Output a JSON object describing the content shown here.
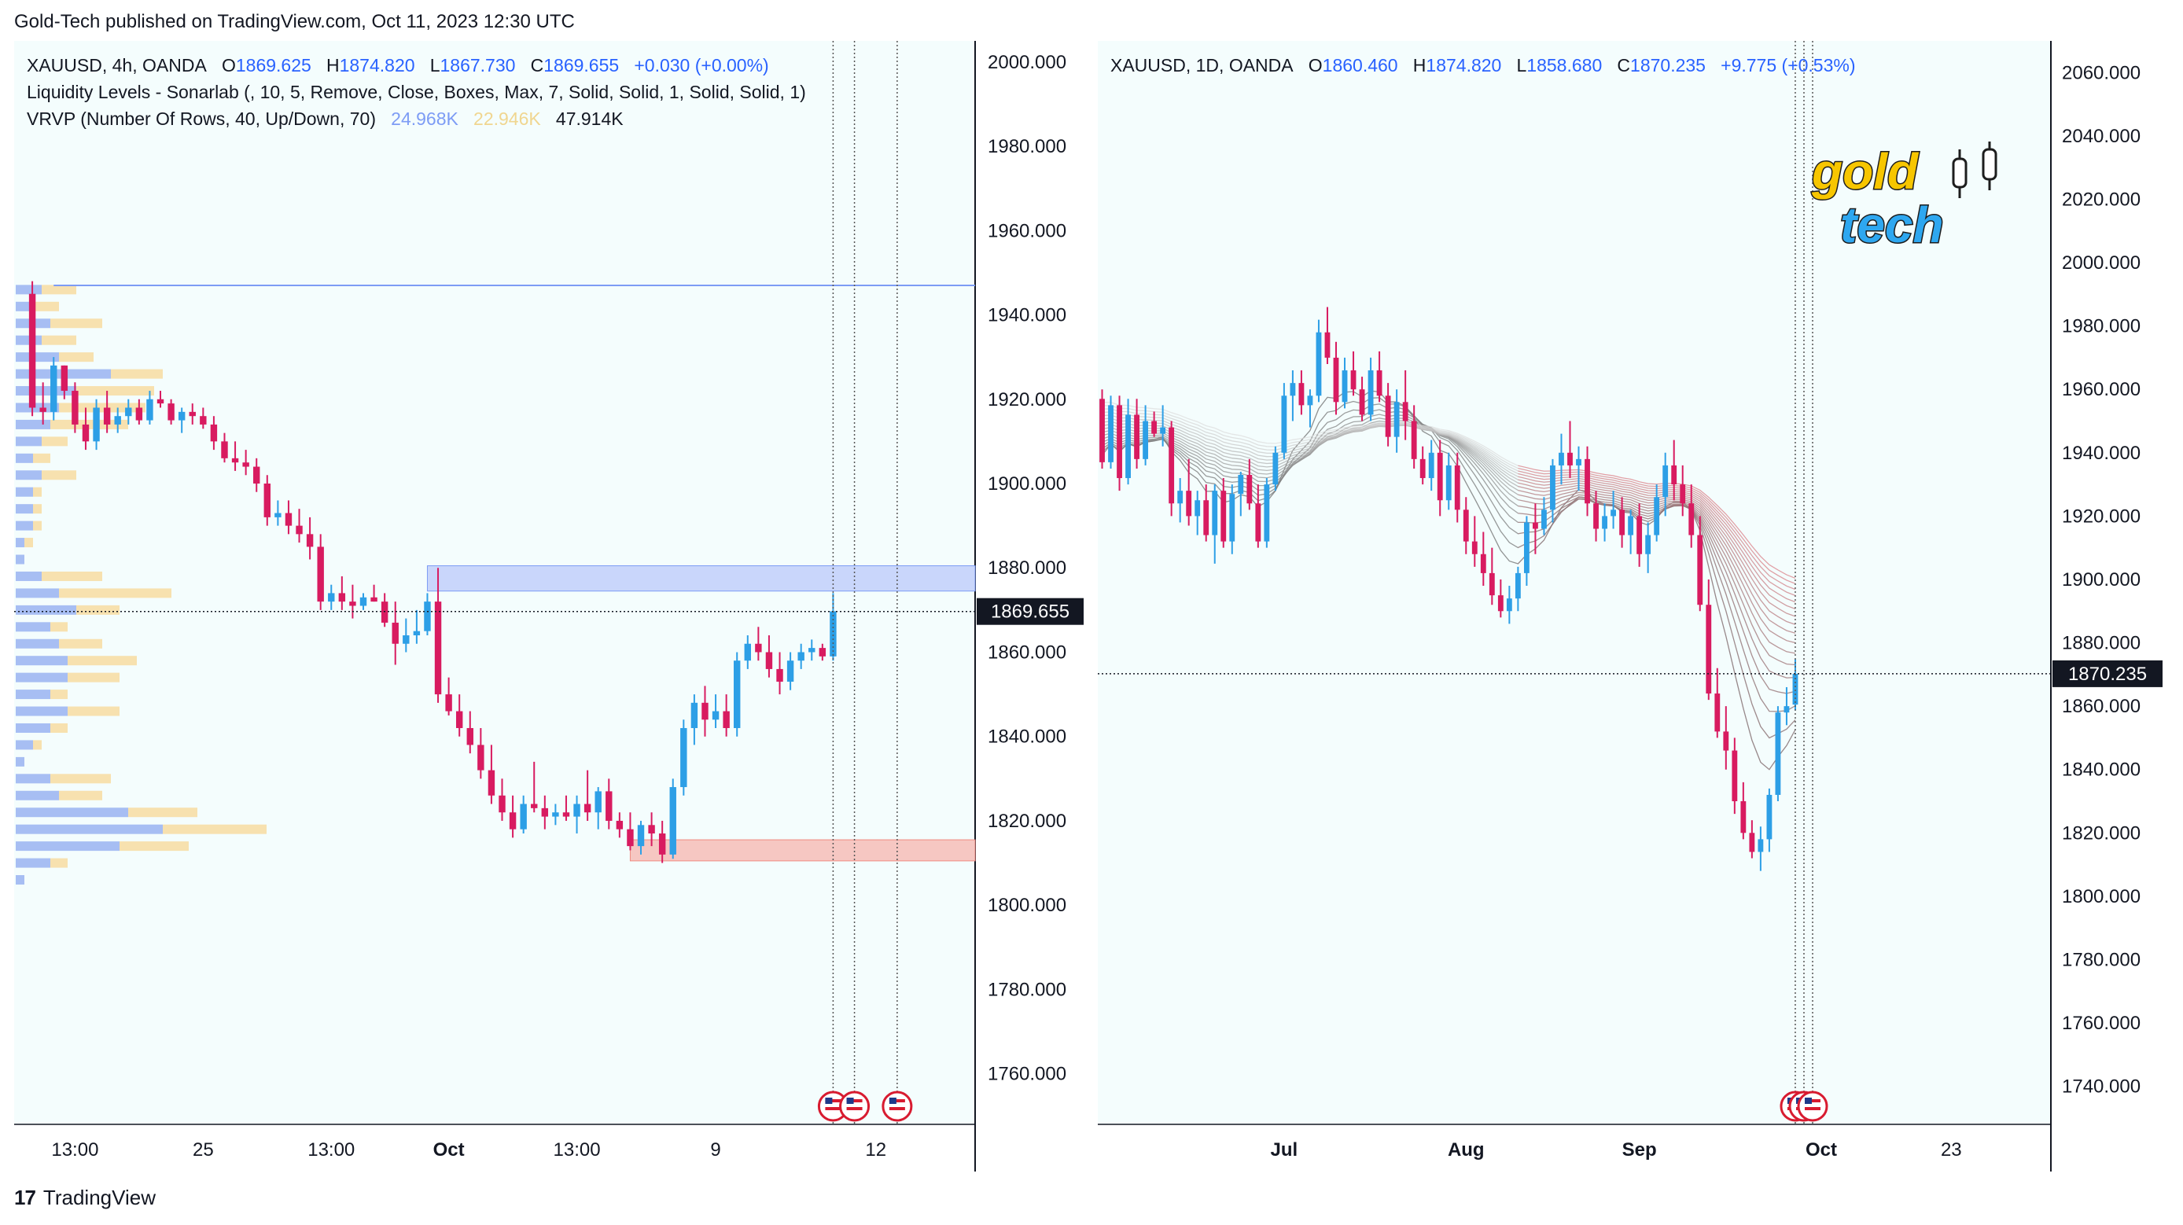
{
  "header": {
    "published": "Gold-Tech published on TradingView.com, Oct 11, 2023 12:30 UTC"
  },
  "footer": {
    "brand": "TradingView"
  },
  "left": {
    "legend": {
      "symbol": "XAUUSD, 4h, OANDA",
      "o_label": "O",
      "o": "1869.625",
      "h_label": "H",
      "h": "1874.820",
      "l_label": "L",
      "l": "1867.730",
      "c_label": "C",
      "c": "1869.655",
      "chg": "+0.030 (+0.00%)",
      "indicator1": "Liquidity Levels - Sonarlab (, 10, 5, Remove, Close, Boxes, Max, 7, Solid, Solid, 1, Solid, Solid, 1)",
      "indicator2": "VRVP (Number Of Rows, 40, Up/Down, 70)",
      "vrvp_up": "24.968K",
      "vrvp_down": "22.946K",
      "vrvp_total": "47.914K"
    },
    "price_tag": "1869.655"
  },
  "right": {
    "legend": {
      "symbol": "XAUUSD, 1D, OANDA",
      "o_label": "O",
      "o": "1860.460",
      "h_label": "H",
      "h": "1874.820",
      "l_label": "L",
      "l": "1858.680",
      "c_label": "C",
      "c": "1870.235",
      "chg": "+9.775 (+0.53%)"
    },
    "price_tag": "1870.235",
    "logo_line1": "gold",
    "logo_line2": "tech"
  },
  "colors": {
    "up": "#2d9fe6",
    "down": "#d81b60",
    "accent": "#2962ff"
  },
  "chart_data": [
    {
      "type": "candlestick",
      "title": "XAUUSD, 4h, OANDA",
      "yticks": [
        2000,
        1980,
        1960,
        1940,
        1920,
        1900,
        1880,
        1860,
        1840,
        1820,
        1800,
        1780,
        1760
      ],
      "ylim": [
        1748,
        2005
      ],
      "xticks": [
        "13:00",
        "25",
        "13:00",
        "Oct",
        "13:00",
        "9",
        "12"
      ],
      "xtick_index": [
        4,
        16,
        28,
        39,
        51,
        64,
        79
      ],
      "last_price": 1869.655,
      "liquidity_levels": [
        {
          "kind": "resistance",
          "from": 1874.5,
          "to": 1880.5,
          "start_index": 37
        },
        {
          "kind": "support",
          "from": 1810.5,
          "to": 1815.5,
          "start_index": 56
        },
        {
          "kind": "line",
          "value": 1947,
          "start_index": 2
        }
      ],
      "volume_profile": [
        {
          "price": 1946,
          "up": 3,
          "down": 4
        },
        {
          "price": 1942,
          "up": 2,
          "down": 3
        },
        {
          "price": 1938,
          "up": 4,
          "down": 6
        },
        {
          "price": 1934,
          "up": 3,
          "down": 4
        },
        {
          "price": 1930,
          "up": 5,
          "down": 4
        },
        {
          "price": 1926,
          "up": 11,
          "down": 6
        },
        {
          "price": 1922,
          "up": 7,
          "down": 9
        },
        {
          "price": 1918,
          "up": 5,
          "down": 10
        },
        {
          "price": 1914,
          "up": 4,
          "down": 9
        },
        {
          "price": 1910,
          "up": 3,
          "down": 3
        },
        {
          "price": 1906,
          "up": 2,
          "down": 2
        },
        {
          "price": 1902,
          "up": 3,
          "down": 4
        },
        {
          "price": 1898,
          "up": 2,
          "down": 1
        },
        {
          "price": 1894,
          "up": 2,
          "down": 1
        },
        {
          "price": 1890,
          "up": 2,
          "down": 1
        },
        {
          "price": 1886,
          "up": 1,
          "down": 1
        },
        {
          "price": 1882,
          "up": 1,
          "down": 0
        },
        {
          "price": 1878,
          "up": 3,
          "down": 7
        },
        {
          "price": 1874,
          "up": 5,
          "down": 13
        },
        {
          "price": 1870,
          "up": 7,
          "down": 5
        },
        {
          "price": 1866,
          "up": 4,
          "down": 2
        },
        {
          "price": 1862,
          "up": 5,
          "down": 5
        },
        {
          "price": 1858,
          "up": 6,
          "down": 8
        },
        {
          "price": 1854,
          "up": 6,
          "down": 6
        },
        {
          "price": 1850,
          "up": 4,
          "down": 2
        },
        {
          "price": 1846,
          "up": 6,
          "down": 6
        },
        {
          "price": 1842,
          "up": 4,
          "down": 2
        },
        {
          "price": 1838,
          "up": 2,
          "down": 1
        },
        {
          "price": 1834,
          "up": 1,
          "down": 0
        },
        {
          "price": 1830,
          "up": 4,
          "down": 7
        },
        {
          "price": 1826,
          "up": 5,
          "down": 5
        },
        {
          "price": 1822,
          "up": 13,
          "down": 8
        },
        {
          "price": 1818,
          "up": 17,
          "down": 12
        },
        {
          "price": 1814,
          "up": 12,
          "down": 8
        },
        {
          "price": 1810,
          "up": 4,
          "down": 2
        },
        {
          "price": 1806,
          "up": 1,
          "down": 0
        }
      ],
      "candles": [
        [
          1945,
          1948,
          1916,
          1918
        ],
        [
          1918,
          1924,
          1914,
          1917
        ],
        [
          1917,
          1930,
          1915,
          1928
        ],
        [
          1928,
          1928,
          1920,
          1922
        ],
        [
          1922,
          1924,
          1912,
          1914
        ],
        [
          1914,
          1918,
          1908,
          1910
        ],
        [
          1910,
          1920,
          1908,
          1918
        ],
        [
          1918,
          1922,
          1912,
          1914
        ],
        [
          1914,
          1918,
          1912,
          1916
        ],
        [
          1916,
          1920,
          1914,
          1918
        ],
        [
          1918,
          1920,
          1914,
          1915
        ],
        [
          1915,
          1922,
          1914,
          1920
        ],
        [
          1920,
          1922,
          1918,
          1919
        ],
        [
          1919,
          1920,
          1914,
          1915
        ],
        [
          1915,
          1918,
          1912,
          1917
        ],
        [
          1917,
          1919,
          1914,
          1916
        ],
        [
          1916,
          1918,
          1913,
          1914
        ],
        [
          1914,
          1916,
          1908,
          1910
        ],
        [
          1910,
          1912,
          1905,
          1906
        ],
        [
          1906,
          1910,
          1903,
          1905
        ],
        [
          1905,
          1908,
          1902,
          1904
        ],
        [
          1904,
          1906,
          1898,
          1900
        ],
        [
          1900,
          1902,
          1890,
          1892
        ],
        [
          1892,
          1896,
          1890,
          1893
        ],
        [
          1893,
          1896,
          1888,
          1890
        ],
        [
          1890,
          1894,
          1886,
          1888
        ],
        [
          1888,
          1892,
          1882,
          1885
        ],
        [
          1885,
          1888,
          1870,
          1872
        ],
        [
          1872,
          1876,
          1870,
          1874
        ],
        [
          1874,
          1878,
          1870,
          1872
        ],
        [
          1872,
          1876,
          1868,
          1871
        ],
        [
          1871,
          1874,
          1870,
          1873
        ],
        [
          1873,
          1876,
          1872,
          1872
        ],
        [
          1872,
          1874,
          1866,
          1867
        ],
        [
          1867,
          1872,
          1857,
          1862
        ],
        [
          1862,
          1868,
          1860,
          1864
        ],
        [
          1864,
          1870,
          1862,
          1865
        ],
        [
          1865,
          1874,
          1864,
          1872
        ],
        [
          1872,
          1880,
          1848,
          1850
        ],
        [
          1850,
          1854,
          1845,
          1846
        ],
        [
          1846,
          1850,
          1840,
          1842
        ],
        [
          1842,
          1846,
          1836,
          1838
        ],
        [
          1838,
          1842,
          1830,
          1832
        ],
        [
          1832,
          1838,
          1824,
          1826
        ],
        [
          1826,
          1830,
          1820,
          1822
        ],
        [
          1822,
          1826,
          1816,
          1818
        ],
        [
          1818,
          1826,
          1817,
          1824
        ],
        [
          1824,
          1834,
          1822,
          1823
        ],
        [
          1823,
          1826,
          1818,
          1821
        ],
        [
          1821,
          1824,
          1819,
          1822
        ],
        [
          1822,
          1826,
          1820,
          1821
        ],
        [
          1821,
          1826,
          1817,
          1824
        ],
        [
          1824,
          1832,
          1820,
          1822
        ],
        [
          1822,
          1828,
          1818,
          1827
        ],
        [
          1827,
          1830,
          1818,
          1820
        ],
        [
          1820,
          1822,
          1816,
          1818
        ],
        [
          1818,
          1822,
          1813,
          1814
        ],
        [
          1814,
          1820,
          1812,
          1819
        ],
        [
          1819,
          1822,
          1814,
          1817
        ],
        [
          1817,
          1820,
          1810,
          1812
        ],
        [
          1812,
          1830,
          1811,
          1828
        ],
        [
          1828,
          1844,
          1826,
          1842
        ],
        [
          1842,
          1850,
          1838,
          1848
        ],
        [
          1848,
          1852,
          1840,
          1844
        ],
        [
          1844,
          1850,
          1842,
          1846
        ],
        [
          1846,
          1850,
          1840,
          1842
        ],
        [
          1842,
          1860,
          1840,
          1858
        ],
        [
          1858,
          1864,
          1856,
          1862
        ],
        [
          1862,
          1866,
          1858,
          1860
        ],
        [
          1860,
          1864,
          1854,
          1856
        ],
        [
          1856,
          1860,
          1850,
          1853
        ],
        [
          1853,
          1860,
          1851,
          1858
        ],
        [
          1858,
          1862,
          1856,
          1860
        ],
        [
          1860,
          1863,
          1858,
          1861
        ],
        [
          1861,
          1862,
          1858,
          1859
        ],
        [
          1859,
          1874,
          1858,
          1869.7
        ]
      ]
    },
    {
      "type": "candlestick",
      "title": "XAUUSD, 1D, OANDA",
      "yticks": [
        2060,
        2040,
        2020,
        2000,
        1980,
        1960,
        1940,
        1920,
        1900,
        1880,
        1860,
        1840,
        1820,
        1800,
        1780,
        1760,
        1740
      ],
      "ylim": [
        1728,
        2070
      ],
      "xticks": [
        "Jul",
        "Aug",
        "Sep",
        "Oct",
        "23"
      ],
      "xtick_index": [
        21,
        42,
        62,
        83,
        98
      ],
      "last_price": 1870.235,
      "indicator": "EMA ribbon (gray/red)",
      "candles": [
        [
          1957,
          1960,
          1935,
          1937
        ],
        [
          1937,
          1958,
          1935,
          1955
        ],
        [
          1955,
          1958,
          1928,
          1932
        ],
        [
          1932,
          1957,
          1930,
          1952
        ],
        [
          1952,
          1957,
          1935,
          1938
        ],
        [
          1938,
          1955,
          1936,
          1950
        ],
        [
          1950,
          1953,
          1945,
          1946
        ],
        [
          1946,
          1955,
          1942,
          1948
        ],
        [
          1948,
          1950,
          1920,
          1924
        ],
        [
          1924,
          1932,
          1918,
          1928
        ],
        [
          1928,
          1938,
          1917,
          1920
        ],
        [
          1920,
          1928,
          1914,
          1925
        ],
        [
          1925,
          1930,
          1912,
          1914
        ],
        [
          1914,
          1930,
          1905,
          1928
        ],
        [
          1928,
          1932,
          1910,
          1912
        ],
        [
          1912,
          1930,
          1908,
          1927
        ],
        [
          1927,
          1934,
          1920,
          1933
        ],
        [
          1933,
          1938,
          1922,
          1924
        ],
        [
          1924,
          1930,
          1910,
          1912
        ],
        [
          1912,
          1932,
          1910,
          1930
        ],
        [
          1930,
          1942,
          1928,
          1940
        ],
        [
          1940,
          1962,
          1938,
          1958
        ],
        [
          1958,
          1966,
          1950,
          1962
        ],
        [
          1962,
          1966,
          1952,
          1955
        ],
        [
          1955,
          1960,
          1948,
          1958
        ],
        [
          1958,
          1982,
          1956,
          1978
        ],
        [
          1978,
          1986,
          1968,
          1970
        ],
        [
          1970,
          1975,
          1952,
          1956
        ],
        [
          1956,
          1970,
          1954,
          1966
        ],
        [
          1966,
          1972,
          1958,
          1960
        ],
        [
          1960,
          1964,
          1950,
          1952
        ],
        [
          1952,
          1970,
          1950,
          1966
        ],
        [
          1966,
          1972,
          1956,
          1958
        ],
        [
          1958,
          1962,
          1942,
          1945
        ],
        [
          1945,
          1960,
          1940,
          1956
        ],
        [
          1956,
          1966,
          1944,
          1950
        ],
        [
          1950,
          1955,
          1935,
          1938
        ],
        [
          1938,
          1942,
          1930,
          1932
        ],
        [
          1932,
          1944,
          1928,
          1940
        ],
        [
          1940,
          1944,
          1920,
          1925
        ],
        [
          1925,
          1940,
          1922,
          1936
        ],
        [
          1936,
          1940,
          1918,
          1922
        ],
        [
          1922,
          1926,
          1908,
          1912
        ],
        [
          1912,
          1920,
          1904,
          1908
        ],
        [
          1908,
          1915,
          1898,
          1902
        ],
        [
          1902,
          1910,
          1892,
          1895
        ],
        [
          1895,
          1900,
          1888,
          1890
        ],
        [
          1890,
          1898,
          1886,
          1894
        ],
        [
          1894,
          1904,
          1890,
          1902
        ],
        [
          1902,
          1920,
          1898,
          1918
        ],
        [
          1918,
          1924,
          1908,
          1916
        ],
        [
          1916,
          1926,
          1914,
          1922
        ],
        [
          1922,
          1938,
          1918,
          1936
        ],
        [
          1936,
          1946,
          1930,
          1940
        ],
        [
          1940,
          1950,
          1932,
          1936
        ],
        [
          1936,
          1942,
          1928,
          1938
        ],
        [
          1938,
          1942,
          1920,
          1924
        ],
        [
          1924,
          1928,
          1912,
          1916
        ],
        [
          1916,
          1924,
          1912,
          1920
        ],
        [
          1920,
          1928,
          1916,
          1922
        ],
        [
          1922,
          1926,
          1910,
          1914
        ],
        [
          1914,
          1922,
          1908,
          1920
        ],
        [
          1920,
          1924,
          1904,
          1908
        ],
        [
          1908,
          1918,
          1902,
          1914
        ],
        [
          1914,
          1930,
          1912,
          1926
        ],
        [
          1926,
          1940,
          1920,
          1936
        ],
        [
          1936,
          1944,
          1925,
          1930
        ],
        [
          1930,
          1936,
          1920,
          1924
        ],
        [
          1924,
          1930,
          1910,
          1914
        ],
        [
          1914,
          1920,
          1890,
          1892
        ],
        [
          1892,
          1900,
          1862,
          1864
        ],
        [
          1864,
          1872,
          1850,
          1852
        ],
        [
          1852,
          1860,
          1840,
          1846
        ],
        [
          1846,
          1850,
          1826,
          1830
        ],
        [
          1830,
          1836,
          1818,
          1820
        ],
        [
          1820,
          1824,
          1812,
          1814
        ],
        [
          1814,
          1822,
          1808,
          1818
        ],
        [
          1818,
          1834,
          1814,
          1832
        ],
        [
          1832,
          1860,
          1830,
          1858
        ],
        [
          1858,
          1866,
          1854,
          1860
        ],
        [
          1860.5,
          1874.8,
          1858.7,
          1870.2
        ]
      ]
    }
  ]
}
